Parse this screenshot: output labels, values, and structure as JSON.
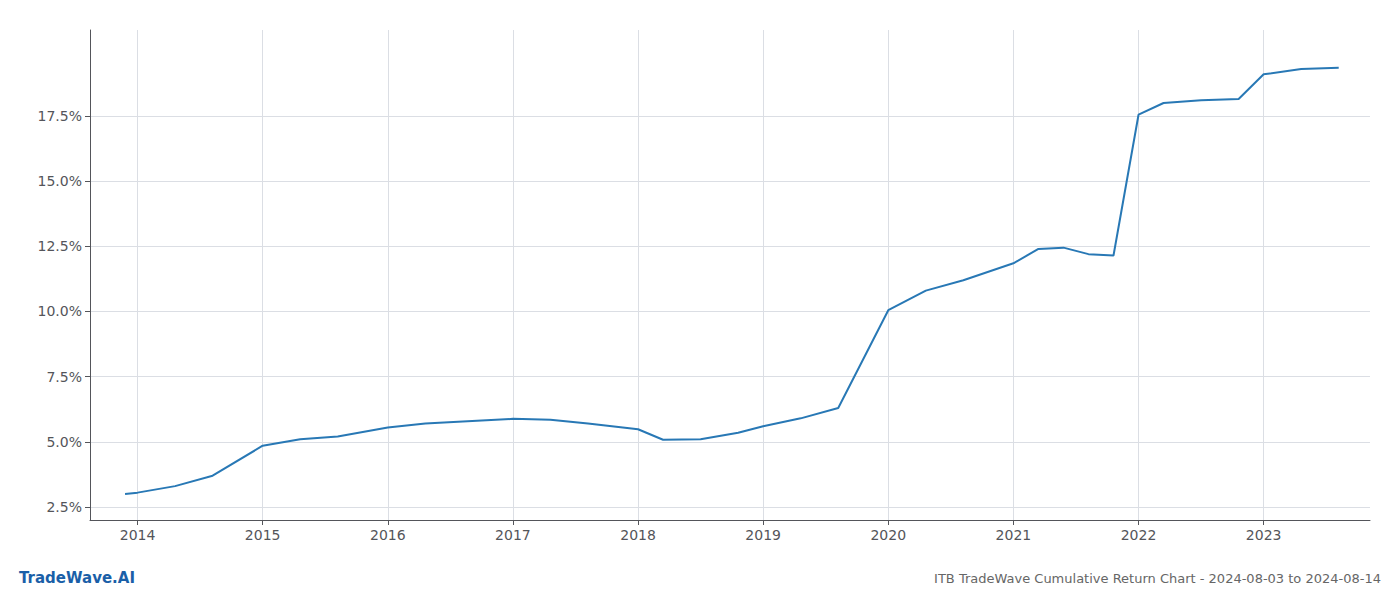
{
  "chart_data": {
    "type": "line",
    "title": "ITB TradeWave Cumulative Return Chart - 2024-08-03 to 2024-08-14",
    "annotations": [
      "TradeWave.AI"
    ],
    "x": [
      2013.9,
      2014.0,
      2014.3,
      2014.6,
      2015.0,
      2015.3,
      2015.6,
      2016.0,
      2016.3,
      2016.6,
      2017.0,
      2017.3,
      2017.6,
      2018.0,
      2018.2,
      2018.5,
      2018.8,
      2019.0,
      2019.3,
      2019.6,
      2020.0,
      2020.3,
      2020.6,
      2021.0,
      2021.2,
      2021.4,
      2021.6,
      2021.8,
      2022.0,
      2022.2,
      2022.5,
      2022.8,
      2023.0,
      2023.3,
      2023.6
    ],
    "values": [
      3.0,
      3.05,
      3.3,
      3.7,
      4.85,
      5.1,
      5.2,
      5.55,
      5.7,
      5.78,
      5.88,
      5.85,
      5.7,
      5.48,
      5.08,
      5.1,
      5.35,
      5.6,
      5.9,
      6.3,
      10.05,
      10.8,
      11.2,
      11.85,
      12.4,
      12.45,
      12.2,
      12.15,
      17.55,
      18.0,
      18.1,
      18.15,
      19.1,
      19.3,
      19.35
    ],
    "color": "#2878b5",
    "xlim": [
      2013.62,
      2023.85
    ],
    "xticks": [
      2014,
      2015,
      2016,
      2017,
      2018,
      2019,
      2020,
      2021,
      2022,
      2023
    ],
    "ylim": [
      2.0,
      20.8
    ],
    "yticks": [
      {
        "value": 2.5,
        "label": "2.5%"
      },
      {
        "value": 5.0,
        "label": "5.0%"
      },
      {
        "value": 7.5,
        "label": "7.5%"
      },
      {
        "value": 10.0,
        "label": "10.0%"
      },
      {
        "value": 12.5,
        "label": "12.5%"
      },
      {
        "value": 15.0,
        "label": "15.0%"
      },
      {
        "value": 17.5,
        "label": "17.5%"
      }
    ],
    "grid": true
  }
}
